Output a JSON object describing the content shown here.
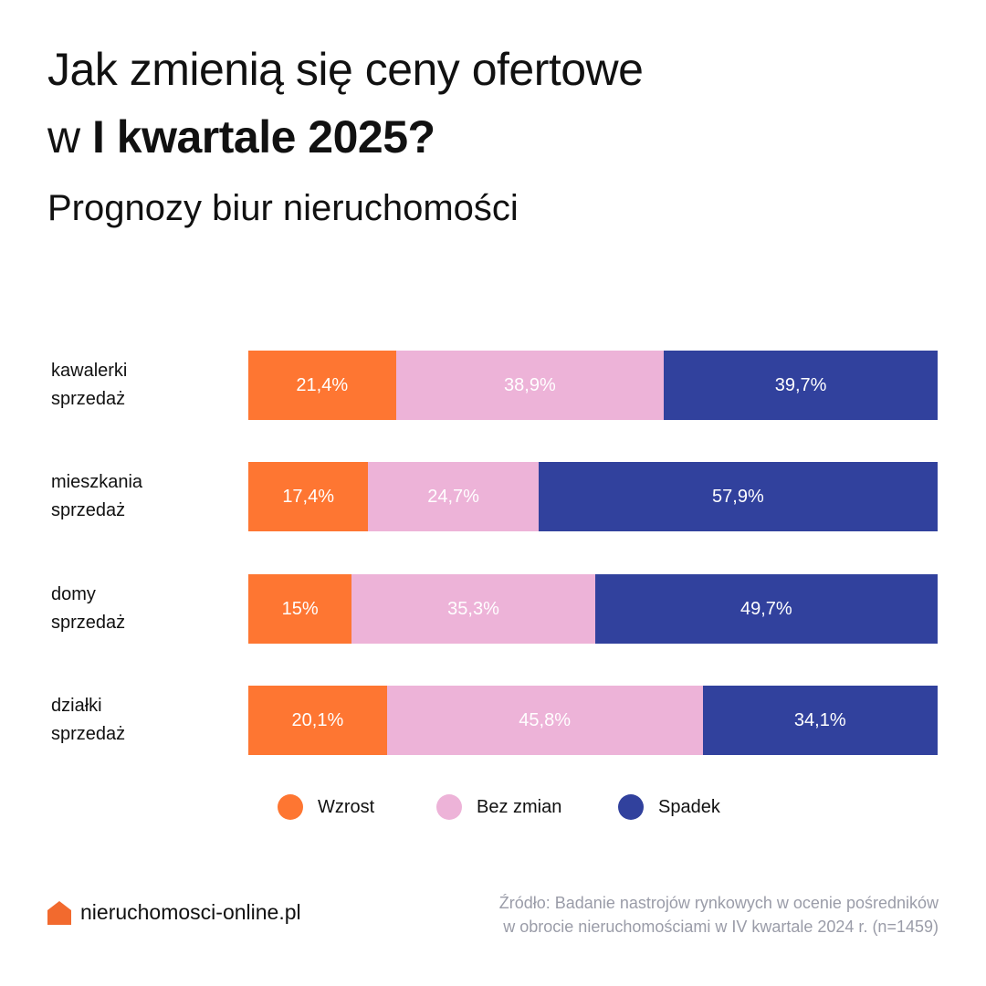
{
  "header": {
    "title_line1": "Jak zmienią się ceny ofertowe",
    "title_line2_regular": "w ",
    "title_line2_bold": "I kwartale 2025?",
    "subtitle": "Prognozy biur nieruchomości"
  },
  "colors": {
    "wzrost": "#fe7632",
    "bez_zmian": "#edb3d8",
    "spadek": "#31419d",
    "logo": "#f26a2e"
  },
  "chart_data": {
    "type": "bar",
    "orientation": "horizontal",
    "stacked": true,
    "normalized_to": 100,
    "title": "Jak zmienią się ceny ofertowe w I kwartale 2025?",
    "subtitle": "Prognozy biur nieruchomości",
    "categories": [
      [
        "kawalerki",
        "sprzedaż"
      ],
      [
        "mieszkania",
        "sprzedaż"
      ],
      [
        "domy",
        "sprzedaż"
      ],
      [
        "działki",
        "sprzedaż"
      ]
    ],
    "series": [
      {
        "name": "Wzrost",
        "color": "#fe7632",
        "values": [
          21.4,
          17.4,
          15.0,
          20.1
        ],
        "labels": [
          "21,4%",
          "17,4%",
          "15%",
          "20,1%"
        ]
      },
      {
        "name": "Bez zmian",
        "color": "#edb3d8",
        "values": [
          38.9,
          24.7,
          35.3,
          45.8
        ],
        "labels": [
          "38,9%",
          "24,7%",
          "35,3%",
          "45,8%"
        ]
      },
      {
        "name": "Spadek",
        "color": "#31419d",
        "values": [
          39.7,
          57.9,
          49.7,
          34.1
        ],
        "labels": [
          "39,7%",
          "57,9%",
          "49,7%",
          "34,1%"
        ]
      }
    ],
    "xlabel": "",
    "ylabel": "",
    "xlim": [
      0,
      100
    ],
    "grid": false,
    "legend_position": "bottom"
  },
  "legend": {
    "items": [
      {
        "label": "Wzrost"
      },
      {
        "label": "Bez zmian"
      },
      {
        "label": "Spadek"
      }
    ]
  },
  "footer": {
    "logo_text": "nieruchomosci-online.pl",
    "logo_icon": "house-icon",
    "source_line1": "Źródło: Badanie nastrojów rynkowych w ocenie pośredników",
    "source_line2": "w obrocie nieruchomościami w IV kwartale 2024 r. (n=1459)"
  }
}
